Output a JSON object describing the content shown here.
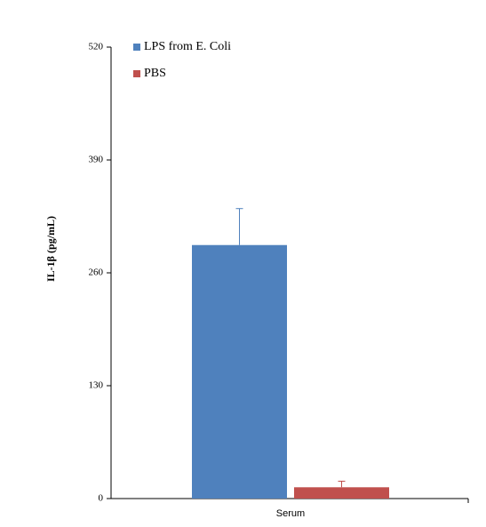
{
  "chart_data": {
    "type": "bar",
    "y_label": "IL-1β (pg/mL)",
    "categories": [
      "Serum"
    ],
    "series": [
      {
        "name": "LPS from E. Coli",
        "color": "#4f81bd",
        "values": [
          292
        ],
        "errors": [
          42
        ]
      },
      {
        "name": "PBS",
        "color": "#c0504d",
        "values": [
          13
        ],
        "errors": [
          7
        ]
      }
    ],
    "ylim": [
      0,
      520
    ],
    "yticks": [
      0,
      130,
      260,
      390,
      520
    ],
    "grid": false,
    "legend": "top-left"
  }
}
